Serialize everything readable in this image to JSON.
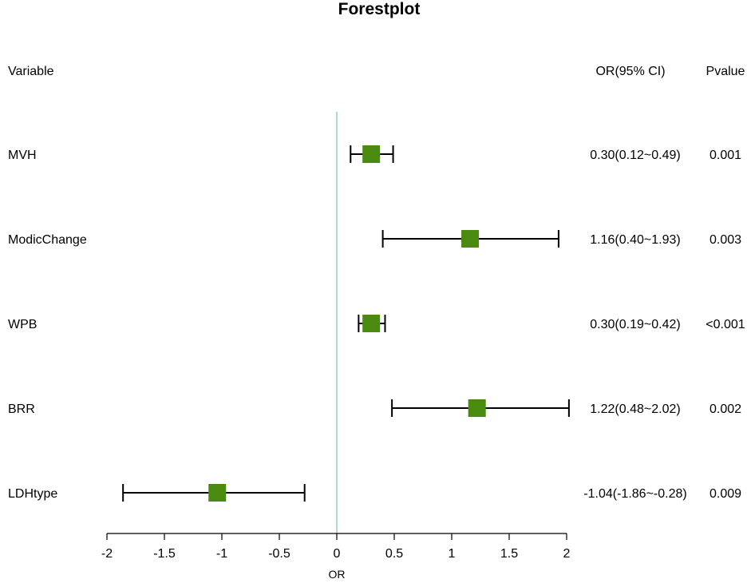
{
  "chart_data": {
    "type": "forest",
    "title": "Forestplot",
    "table_headers": {
      "variable": "Variable",
      "or_ci": "OR(95% CI)",
      "pvalue": "Pvalue"
    },
    "xlabel": "OR",
    "xlim": [
      -2,
      2
    ],
    "ticks": [
      -2,
      -1.5,
      -1,
      -0.5,
      0,
      0.5,
      1,
      1.5,
      2
    ],
    "reference_line": 0,
    "marker_color": "#4a8a0f",
    "reference_line_color": "#8fcfc8",
    "rows": [
      {
        "variable": "MVH",
        "estimate": 0.3,
        "lower": 0.12,
        "upper": 0.49,
        "ci_text": "0.30(0.12~0.49)",
        "pvalue": "0.001"
      },
      {
        "variable": "ModicChange",
        "estimate": 1.16,
        "lower": 0.4,
        "upper": 1.93,
        "ci_text": "1.16(0.40~1.93)",
        "pvalue": "0.003"
      },
      {
        "variable": "WPB",
        "estimate": 0.3,
        "lower": 0.19,
        "upper": 0.42,
        "ci_text": "0.30(0.19~0.42)",
        "pvalue": "<0.001"
      },
      {
        "variable": "BRR",
        "estimate": 1.22,
        "lower": 0.48,
        "upper": 2.02,
        "ci_text": "1.22(0.48~2.02)",
        "pvalue": "0.002"
      },
      {
        "variable": "LDHtype",
        "estimate": -1.04,
        "lower": -1.86,
        "upper": -0.28,
        "ci_text": "-1.04(-1.86~-0.28)",
        "pvalue": "0.009"
      }
    ]
  }
}
